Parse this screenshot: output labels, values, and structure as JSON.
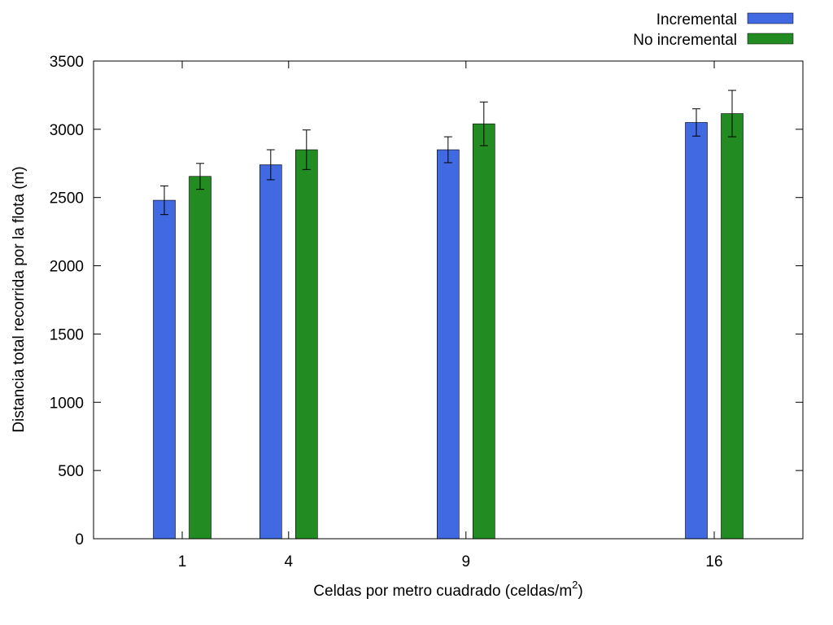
{
  "chart_data": {
    "type": "bar",
    "title": "",
    "xlabel": "Celdas por metro cuadrado (celdas/m",
    "xlabel_sup": "2",
    "xlabel_suffix": ")",
    "ylabel": "Distancia total recorrida por la flota (m)",
    "x_scale": "linear",
    "xlim": [
      -1.5,
      18.5
    ],
    "ylim": [
      0,
      3500
    ],
    "yticks": [
      0,
      500,
      1000,
      1500,
      2000,
      2500,
      3000,
      3500
    ],
    "categories": [
      1,
      4,
      9,
      16
    ],
    "grid": false,
    "legend_position": "top-right",
    "series": [
      {
        "name": "Incremental",
        "color": "#4169e1",
        "values": [
          2480,
          2740,
          2850,
          3050
        ],
        "errors": [
          105,
          110,
          95,
          100
        ]
      },
      {
        "name": "No incremental",
        "color": "#228b22",
        "values": [
          2655,
          2850,
          3040,
          3115
        ],
        "errors": [
          95,
          145,
          160,
          170
        ]
      }
    ]
  }
}
